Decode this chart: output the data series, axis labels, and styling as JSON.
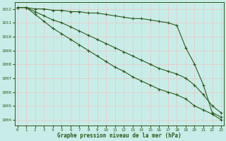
{
  "title": "Graphe pression niveau de la mer (hPa)",
  "background_color": "#c8ede8",
  "grid_color": "#e8c8c8",
  "line_color": "#2a5a18",
  "text_color": "#2a5a18",
  "xlim": [
    -0.3,
    23.3
  ],
  "ylim": [
    1003.6,
    1012.5
  ],
  "yticks": [
    1004,
    1005,
    1006,
    1007,
    1008,
    1009,
    1010,
    1011,
    1012
  ],
  "xticks": [
    0,
    1,
    2,
    3,
    4,
    5,
    6,
    7,
    8,
    9,
    10,
    11,
    12,
    13,
    14,
    15,
    16,
    17,
    18,
    19,
    20,
    21,
    22,
    23
  ],
  "series": [
    [
      1012.1,
      1012.1,
      1012.0,
      1012.0,
      1011.9,
      1011.9,
      1011.8,
      1011.8,
      1011.7,
      1011.7,
      1011.6,
      1011.5,
      1011.4,
      1011.3,
      1011.3,
      1011.2,
      1011.1,
      1011.0,
      1010.8,
      1009.2,
      1008.0,
      1006.5,
      1004.5,
      1004.2
    ],
    [
      1012.1,
      1012.1,
      1011.8,
      1011.5,
      1011.2,
      1011.0,
      1010.7,
      1010.4,
      1010.1,
      1009.8,
      1009.5,
      1009.2,
      1008.9,
      1008.6,
      1008.3,
      1008.0,
      1007.7,
      1007.5,
      1007.3,
      1007.0,
      1006.5,
      1005.8,
      1005.0,
      1004.5
    ],
    [
      1012.1,
      1012.1,
      1011.6,
      1011.1,
      1010.6,
      1010.2,
      1009.8,
      1009.4,
      1009.0,
      1008.6,
      1008.2,
      1007.8,
      1007.5,
      1007.1,
      1006.8,
      1006.5,
      1006.2,
      1006.0,
      1005.8,
      1005.5,
      1005.0,
      1004.7,
      1004.4,
      1004.0
    ]
  ]
}
